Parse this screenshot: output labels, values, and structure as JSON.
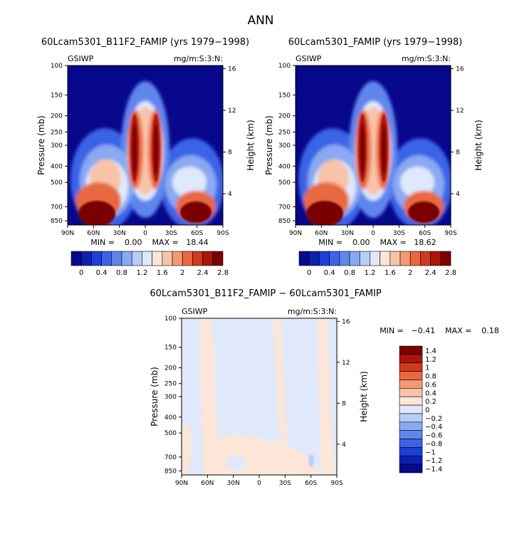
{
  "main_title": "ANN",
  "palette": {
    "full": [
      "#08088c",
      "#0c1fb0",
      "#1d3fd6",
      "#3a63e6",
      "#5f86ee",
      "#89a9f2",
      "#b7cdf6",
      "#dfe9fb",
      "#fbe6d8",
      "#f8c3a8",
      "#f39a73",
      "#e8683f",
      "#cf3a1d",
      "#a9160a",
      "#7a0303"
    ],
    "diff": [
      "#08088c",
      "#0c1fb0",
      "#1d3fd6",
      "#3a63e6",
      "#5f86ee",
      "#89a9f2",
      "#b7cdf6",
      "#dfe9fb",
      "#fbe6d8",
      "#f8c3a8",
      "#f39a73",
      "#e8683f",
      "#cf3a1d",
      "#a9160a",
      "#7a0303"
    ]
  },
  "colorbar_full": {
    "ticks": [
      "0",
      "0.4",
      "0.8",
      "1.2",
      "1.6",
      "2",
      "2.4",
      "2.8"
    ]
  },
  "colorbar_diff": {
    "ticks": [
      "1.4",
      "1.2",
      "1",
      "0.8",
      "0.6",
      "0.4",
      "0.2",
      "0",
      "−0.2",
      "−0.4",
      "−0.6",
      "−0.8",
      "−1",
      "−1.2",
      "−1.4"
    ]
  },
  "panels": [
    {
      "title": "60Lcam5301_B11F2_FAMIP (yrs 1979−1998)",
      "left_corner": "GSIWP",
      "right_corner": "mg/m:S:3:N:",
      "ylabel": "Pressure (mb)",
      "ylabel_right": "Height (km)",
      "stats_text": "MIN =    0.00    MAX =   18.44"
    },
    {
      "title": "60Lcam5301_FAMIP (yrs 1979−1998)",
      "left_corner": "GSIWP",
      "right_corner": "mg/m:S:3:N:",
      "ylabel": "Pressure (mb)",
      "ylabel_right": "Height (km)",
      "stats_text": "MIN =    0.00    MAX =   18.62"
    },
    {
      "title": "60Lcam5301_B11F2_FAMIP − 60Lcam5301_FAMIP",
      "left_corner": "GSIWP",
      "right_corner": "mg/m:S:3:N:",
      "ylabel": "Pressure (mb)",
      "ylabel_right": "Height (km)",
      "stats_text": "MIN =   −0.41    MAX =    0.18"
    }
  ],
  "chart_data": [
    {
      "type": "heatmap",
      "title": "60Lcam5301_B11F2_FAMIP (yrs 1979−1998)",
      "xlabel": "",
      "ylabel": "Pressure (mb)",
      "ylabel_right": "Height (km)",
      "x_ticks": [
        "90N",
        "60N",
        "30N",
        "0",
        "30S",
        "60S",
        "90S"
      ],
      "y_ticks": [
        "100",
        "150",
        "200",
        "250",
        "300",
        "400",
        "500",
        "700",
        "850"
      ],
      "y_right_ticks": [
        "16",
        "12",
        "8",
        "4"
      ],
      "min": 0.0,
      "max": 18.44,
      "contour_levels": [
        0,
        0.2,
        0.4,
        0.6,
        0.8,
        1.0,
        1.2,
        1.4,
        1.6,
        1.8,
        2.0,
        2.2,
        2.4,
        2.6,
        2.8
      ]
    },
    {
      "type": "heatmap",
      "title": "60Lcam5301_FAMIP (yrs 1979−1998)",
      "xlabel": "",
      "ylabel": "Pressure (mb)",
      "ylabel_right": "Height (km)",
      "x_ticks": [
        "90N",
        "60N",
        "30N",
        "0",
        "30S",
        "60S",
        "90S"
      ],
      "y_ticks": [
        "100",
        "150",
        "200",
        "250",
        "300",
        "400",
        "500",
        "700",
        "850"
      ],
      "y_right_ticks": [
        "16",
        "12",
        "8",
        "4"
      ],
      "min": 0.0,
      "max": 18.62,
      "contour_levels": [
        0,
        0.2,
        0.4,
        0.6,
        0.8,
        1.0,
        1.2,
        1.4,
        1.6,
        1.8,
        2.0,
        2.2,
        2.4,
        2.6,
        2.8
      ]
    },
    {
      "type": "heatmap",
      "title": "60Lcam5301_B11F2_FAMIP − 60Lcam5301_FAMIP",
      "xlabel": "",
      "ylabel": "Pressure (mb)",
      "ylabel_right": "Height (km)",
      "x_ticks": [
        "90N",
        "60N",
        "30N",
        "0",
        "30S",
        "60S",
        "90S"
      ],
      "y_ticks": [
        "100",
        "150",
        "200",
        "250",
        "300",
        "400",
        "500",
        "700",
        "850"
      ],
      "y_right_ticks": [
        "16",
        "12",
        "8",
        "4"
      ],
      "min": -0.41,
      "max": 0.18,
      "contour_levels": [
        -1.4,
        -1.2,
        -1.0,
        -0.8,
        -0.6,
        -0.4,
        -0.2,
        0,
        0.2,
        0.4,
        0.6,
        0.8,
        1.0,
        1.2,
        1.4
      ]
    }
  ]
}
